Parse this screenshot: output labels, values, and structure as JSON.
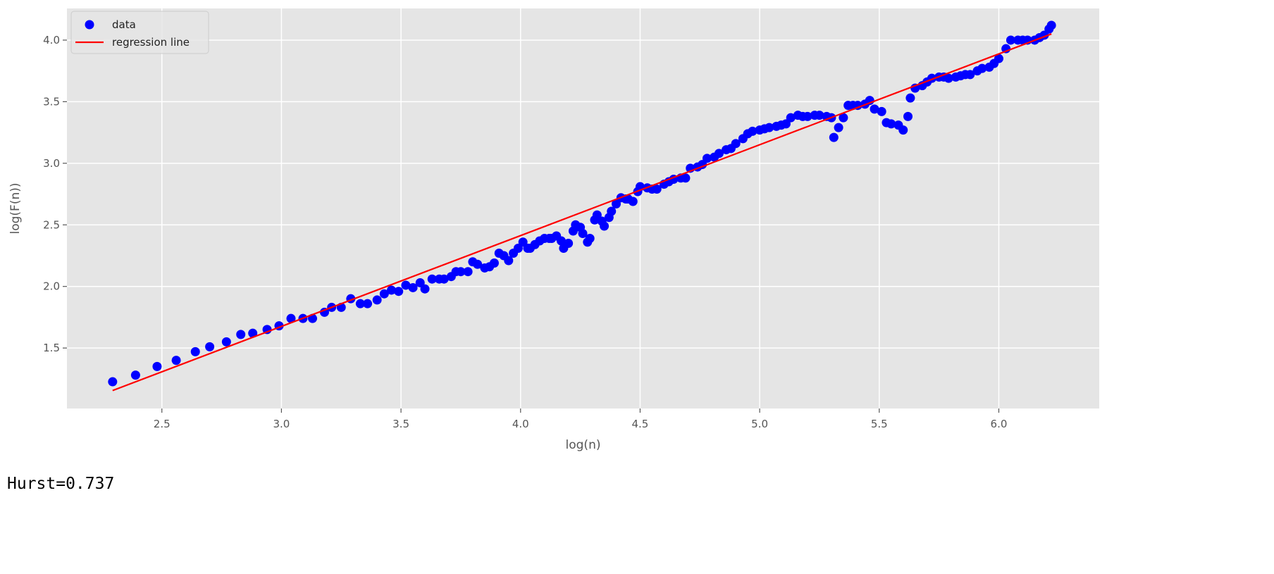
{
  "chart_data": {
    "type": "scatter",
    "xlabel": "log(n)",
    "ylabel": "log(F(n))",
    "xlim": [
      2.103,
      6.42
    ],
    "ylim": [
      1.009,
      4.257
    ],
    "xticks": [
      2.5,
      {
        "value": 3,
        "label": "3.0"
      },
      3.5,
      {
        "value": 4,
        "label": "4.0"
      },
      4.5,
      {
        "value": 5,
        "label": "5.0"
      },
      5.5,
      {
        "value": 6,
        "label": "6.0"
      }
    ],
    "yticks": [
      1.5,
      {
        "value": 2,
        "label": "2.0"
      },
      2.5,
      {
        "value": 3,
        "label": "3.0"
      },
      3.5,
      {
        "value": 4,
        "label": "4.0"
      }
    ],
    "grid": true,
    "legend": "upper left",
    "series": [
      {
        "name": "data",
        "type": "scatter",
        "color": "#0000ff",
        "x": [
          2.294,
          2.39,
          2.48,
          2.56,
          2.64,
          2.7,
          2.77,
          2.83,
          2.88,
          2.94,
          2.99,
          3.04,
          3.09,
          3.13,
          3.18,
          3.21,
          3.25,
          3.29,
          3.33,
          3.36,
          3.4,
          3.43,
          3.46,
          3.49,
          3.52,
          3.55,
          3.58,
          3.6,
          3.63,
          3.66,
          3.68,
          3.71,
          3.73,
          3.75,
          3.78,
          3.8,
          3.82,
          3.85,
          3.87,
          3.89,
          3.91,
          3.93,
          3.95,
          3.97,
          3.99,
          4.01,
          4.03,
          4.04,
          4.06,
          4.08,
          4.1,
          4.12,
          4.13,
          4.15,
          4.17,
          4.18,
          4.2,
          4.22,
          4.23,
          4.25,
          4.26,
          4.28,
          4.29,
          4.31,
          4.32,
          4.34,
          4.35,
          4.37,
          4.38,
          4.4,
          4.42,
          4.44,
          4.45,
          4.47,
          4.49,
          4.5,
          4.53,
          4.55,
          4.57,
          4.6,
          4.62,
          4.64,
          4.67,
          4.69,
          4.71,
          4.74,
          4.76,
          4.78,
          4.81,
          4.83,
          4.86,
          4.88,
          4.9,
          4.93,
          4.95,
          4.97,
          5.0,
          5.02,
          5.04,
          5.07,
          5.09,
          5.11,
          5.13,
          5.16,
          5.18,
          5.2,
          5.23,
          5.25,
          5.28,
          5.3,
          5.31,
          5.33,
          5.35,
          5.37,
          5.39,
          5.41,
          5.44,
          5.46,
          5.48,
          5.51,
          5.53,
          5.55,
          5.58,
          5.6,
          5.62,
          5.63,
          5.65,
          5.68,
          5.7,
          5.72,
          5.75,
          5.77,
          5.79,
          5.82,
          5.84,
          5.86,
          5.88,
          5.91,
          5.93,
          5.96,
          5.98,
          6.0,
          6.03,
          6.05,
          6.08,
          6.1,
          6.12,
          6.15,
          6.17,
          6.19,
          6.21,
          6.22
        ],
        "values": [
          1.226,
          1.28,
          1.35,
          1.4,
          1.47,
          1.51,
          1.55,
          1.61,
          1.62,
          1.65,
          1.68,
          1.74,
          1.74,
          1.74,
          1.79,
          1.83,
          1.83,
          1.9,
          1.86,
          1.86,
          1.89,
          1.94,
          1.97,
          1.96,
          2.01,
          1.99,
          2.03,
          1.98,
          2.06,
          2.06,
          2.06,
          2.08,
          2.12,
          2.12,
          2.12,
          2.2,
          2.18,
          2.15,
          2.16,
          2.19,
          2.27,
          2.25,
          2.21,
          2.27,
          2.31,
          2.36,
          2.31,
          2.31,
          2.34,
          2.37,
          2.39,
          2.39,
          2.39,
          2.41,
          2.37,
          2.31,
          2.35,
          2.45,
          2.5,
          2.48,
          2.43,
          2.36,
          2.39,
          2.54,
          2.58,
          2.53,
          2.49,
          2.56,
          2.61,
          2.67,
          2.72,
          2.71,
          2.71,
          2.69,
          2.77,
          2.81,
          2.8,
          2.79,
          2.79,
          2.83,
          2.85,
          2.87,
          2.88,
          2.88,
          2.96,
          2.97,
          2.99,
          3.04,
          3.05,
          3.08,
          3.11,
          3.12,
          3.16,
          3.2,
          3.24,
          3.26,
          3.27,
          3.28,
          3.29,
          3.3,
          3.31,
          3.32,
          3.37,
          3.39,
          3.38,
          3.38,
          3.39,
          3.39,
          3.38,
          3.37,
          3.21,
          3.29,
          3.37,
          3.47,
          3.47,
          3.47,
          3.48,
          3.51,
          3.44,
          3.42,
          3.33,
          3.32,
          3.31,
          3.27,
          3.38,
          3.53,
          3.61,
          3.63,
          3.66,
          3.69,
          3.7,
          3.7,
          3.69,
          3.7,
          3.71,
          3.72,
          3.72,
          3.75,
          3.77,
          3.78,
          3.81,
          3.85,
          3.93,
          4.0,
          4.0,
          4.0,
          4.0,
          4.0,
          4.02,
          4.04,
          4.09,
          4.12
        ]
      },
      {
        "name": "regression line",
        "type": "line",
        "color": "#ff0000",
        "x": [
          2.294,
          6.22
        ],
        "values": [
          1.155,
          4.05
        ]
      }
    ]
  },
  "output": "Hurst=0.737"
}
